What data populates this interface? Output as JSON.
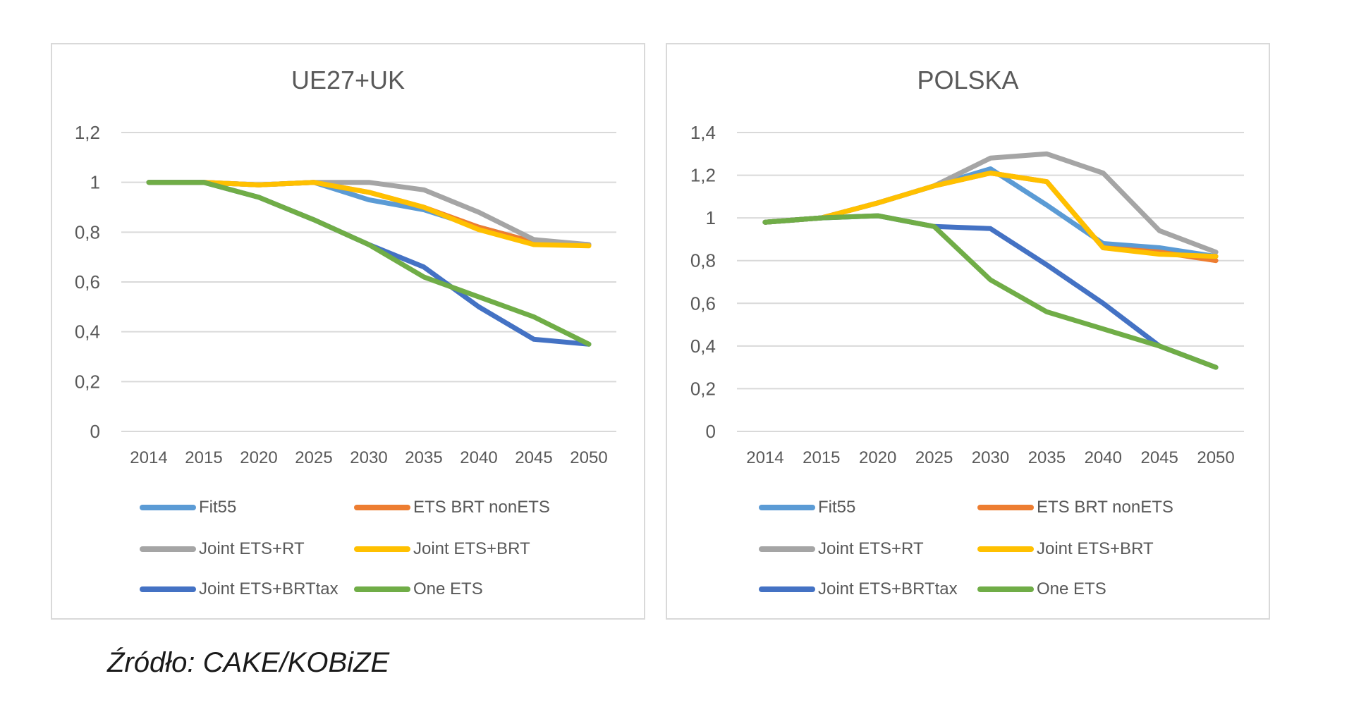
{
  "source": "Źródło: CAKE/KOBiZE",
  "series_colors": {
    "Fit55": "#5b9bd5",
    "ETS BRT nonETS": "#ed7d31",
    "Joint ETS+RT": "#a5a5a5",
    "Joint ETS+BRT": "#ffc000",
    "Joint ETS+BRTtax": "#4472c4",
    "One ETS": "#70ad47"
  },
  "chart_data": [
    {
      "type": "line",
      "title": "UE27+UK",
      "categories": [
        "2014",
        "2015",
        "2020",
        "2025",
        "2030",
        "2035",
        "2040",
        "2045",
        "2050"
      ],
      "ylim": [
        0,
        1.2
      ],
      "yticks": [
        "0",
        "0,2",
        "0,4",
        "0,6",
        "0,8",
        "1",
        "1,2"
      ],
      "grid": true,
      "legend_position": "bottom",
      "series": [
        {
          "name": "Fit55",
          "values": [
            1,
            1,
            0.99,
            1,
            0.93,
            0.89,
            0.82,
            0.76,
            0.75
          ]
        },
        {
          "name": "ETS BRT nonETS",
          "values": [
            1,
            1,
            0.99,
            1,
            0.96,
            0.9,
            0.82,
            0.76,
            0.75
          ]
        },
        {
          "name": "Joint ETS+RT",
          "values": [
            1,
            1,
            0.99,
            1,
            1,
            0.97,
            0.88,
            0.77,
            0.75
          ]
        },
        {
          "name": "Joint ETS+BRT",
          "values": [
            1,
            1,
            0.99,
            1,
            0.96,
            0.9,
            0.81,
            0.75,
            0.745
          ]
        },
        {
          "name": "Joint ETS+BRTtax",
          "values": [
            1,
            1,
            0.94,
            0.85,
            0.75,
            0.66,
            0.5,
            0.37,
            0.35
          ]
        },
        {
          "name": "One ETS",
          "values": [
            1,
            1,
            0.94,
            0.85,
            0.75,
            0.62,
            0.54,
            0.46,
            0.35
          ]
        }
      ]
    },
    {
      "type": "line",
      "title": "POLSKA",
      "categories": [
        "2014",
        "2015",
        "2020",
        "2025",
        "2030",
        "2035",
        "2040",
        "2045",
        "2050"
      ],
      "ylim": [
        0,
        1.4
      ],
      "yticks": [
        "0",
        "0,2",
        "0,4",
        "0,6",
        "0,8",
        "1",
        "1,2",
        "1,4"
      ],
      "grid": true,
      "legend_position": "bottom",
      "series": [
        {
          "name": "Fit55",
          "values": [
            0.98,
            1,
            1.07,
            1.15,
            1.23,
            1.06,
            0.88,
            0.86,
            0.82
          ]
        },
        {
          "name": "ETS BRT nonETS",
          "values": [
            0.98,
            1,
            1.07,
            1.15,
            1.21,
            1.17,
            0.86,
            0.84,
            0.8
          ]
        },
        {
          "name": "Joint ETS+RT",
          "values": [
            0.98,
            1,
            1.07,
            1.15,
            1.28,
            1.3,
            1.21,
            0.94,
            0.84
          ]
        },
        {
          "name": "Joint ETS+BRT",
          "values": [
            0.98,
            1,
            1.07,
            1.15,
            1.21,
            1.17,
            0.86,
            0.83,
            0.82
          ]
        },
        {
          "name": "Joint ETS+BRTtax",
          "values": [
            0.98,
            1,
            1.01,
            0.96,
            0.95,
            0.78,
            0.6,
            0.4,
            0.3
          ]
        },
        {
          "name": "One ETS",
          "values": [
            0.98,
            1,
            1.01,
            0.96,
            0.71,
            0.56,
            0.48,
            0.4,
            0.3
          ]
        }
      ]
    }
  ]
}
